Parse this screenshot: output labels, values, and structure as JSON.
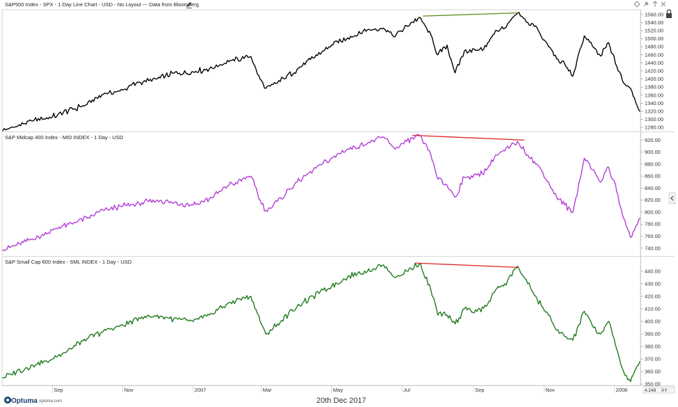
{
  "footer": {
    "date": "20th Dec 2017",
    "brand": "Optuma",
    "brand_url": "optuma.com",
    "corner_value": "4.248",
    "corner_xy": "XY"
  },
  "icons": [
    "pencil-icon",
    "diamond-icon",
    "pin-icon",
    "up-arrow-icon",
    "close-icon",
    "lock-icon",
    "collapse-arrow-icon"
  ],
  "x_axis": {
    "labels": [
      "Sep",
      "Nov",
      "2007",
      "Mar",
      "May",
      "Jul",
      "Sep",
      "Nov",
      "2008"
    ],
    "label_dates": [
      "2006-09-01",
      "2006-11-01",
      "2007-01-01",
      "2007-03-01",
      "2007-05-01",
      "2007-07-01",
      "2007-09-01",
      "2007-11-01",
      "2008-01-01"
    ],
    "start_date": "2006-07-20",
    "end_date": "2008-01-23"
  },
  "chart_data": [
    {
      "type": "line",
      "title": "S&P500 Index - SPX - 1 Day Line Chart - USD - No Layout --- Data from Bloomberg",
      "color": "#000000",
      "ylim": [
        1270,
        1570
      ],
      "yticks": [
        1280,
        1300,
        1320,
        1340,
        1360,
        1380,
        1400,
        1420,
        1440,
        1460,
        1480,
        1500,
        1520,
        1540,
        1560
      ],
      "ytick_labels": [
        "1280.00",
        "1300.00",
        "1320.00",
        "1340.00",
        "1360.00",
        "1380.00",
        "1400.00",
        "1420.00",
        "1440.00",
        "1460.00",
        "1480.00",
        "1500.00",
        "1520.00",
        "1540.00",
        "1560.00"
      ],
      "x": [
        "2006-07-20",
        "2006-08-01",
        "2006-08-15",
        "2006-09-01",
        "2006-09-15",
        "2006-10-01",
        "2006-10-15",
        "2006-11-01",
        "2006-11-15",
        "2006-12-01",
        "2006-12-15",
        "2007-01-01",
        "2007-01-15",
        "2007-02-01",
        "2007-02-20",
        "2007-02-28",
        "2007-03-05",
        "2007-03-15",
        "2007-04-01",
        "2007-04-15",
        "2007-05-01",
        "2007-05-15",
        "2007-06-01",
        "2007-06-15",
        "2007-06-25",
        "2007-07-05",
        "2007-07-16",
        "2007-07-26",
        "2007-08-01",
        "2007-08-09",
        "2007-08-16",
        "2007-08-24",
        "2007-09-04",
        "2007-09-12",
        "2007-09-20",
        "2007-09-28",
        "2007-10-09",
        "2007-10-18",
        "2007-10-26",
        "2007-11-05",
        "2007-11-12",
        "2007-11-19",
        "2007-11-26",
        "2007-12-06",
        "2007-12-14",
        "2007-12-20",
        "2007-12-27",
        "2008-01-03",
        "2008-01-09",
        "2008-01-15",
        "2008-01-23"
      ],
      "values": [
        1272,
        1282,
        1296,
        1306,
        1322,
        1337,
        1362,
        1373,
        1392,
        1401,
        1414,
        1418,
        1425,
        1443,
        1456,
        1400,
        1377,
        1390,
        1424,
        1452,
        1484,
        1502,
        1522,
        1526,
        1505,
        1532,
        1553,
        1510,
        1460,
        1484,
        1415,
        1470,
        1472,
        1480,
        1520,
        1526,
        1563,
        1540,
        1527,
        1480,
        1450,
        1437,
        1407,
        1507,
        1478,
        1457,
        1490,
        1432,
        1390,
        1377,
        1320
      ]
    },
    {
      "type": "line",
      "title": "S&P Midcap 400 Index - MID INDEX - 1 Day - USD",
      "color": "#b13ed6",
      "ylim": [
        727,
        932
      ],
      "yticks": [
        740,
        760,
        780,
        800,
        820,
        840,
        860,
        880,
        900,
        920
      ],
      "ytick_labels": [
        "740.00",
        "760.00",
        "780.00",
        "800.00",
        "820.00",
        "840.00",
        "860.00",
        "880.00",
        "900.00",
        "920.00"
      ],
      "x": [
        "2006-07-20",
        "2006-08-01",
        "2006-08-15",
        "2006-09-01",
        "2006-09-15",
        "2006-10-01",
        "2006-10-15",
        "2006-11-01",
        "2006-11-15",
        "2006-12-01",
        "2006-12-15",
        "2007-01-01",
        "2007-01-15",
        "2007-02-01",
        "2007-02-20",
        "2007-02-28",
        "2007-03-05",
        "2007-03-15",
        "2007-04-01",
        "2007-04-15",
        "2007-05-01",
        "2007-05-15",
        "2007-06-01",
        "2007-06-15",
        "2007-06-25",
        "2007-07-05",
        "2007-07-16",
        "2007-07-26",
        "2007-08-01",
        "2007-08-09",
        "2007-08-16",
        "2007-08-24",
        "2007-09-04",
        "2007-09-12",
        "2007-09-20",
        "2007-09-28",
        "2007-10-09",
        "2007-10-18",
        "2007-10-26",
        "2007-11-05",
        "2007-11-12",
        "2007-11-19",
        "2007-11-26",
        "2007-12-06",
        "2007-12-14",
        "2007-12-20",
        "2007-12-27",
        "2008-01-03",
        "2008-01-09",
        "2008-01-15",
        "2008-01-23"
      ],
      "values": [
        737,
        745,
        755,
        770,
        780,
        790,
        803,
        810,
        815,
        820,
        815,
        812,
        822,
        845,
        860,
        820,
        803,
        818,
        850,
        870,
        890,
        905,
        915,
        925,
        905,
        918,
        927,
        895,
        855,
        845,
        825,
        858,
        862,
        870,
        895,
        902,
        918,
        895,
        880,
        850,
        825,
        812,
        800,
        890,
        870,
        850,
        875,
        835,
        790,
        758,
        790
      ]
    },
    {
      "type": "line",
      "title": "S&P Small Cap 600 Index - SML INDEX - 1 Day - USD",
      "color": "#1e7a1e",
      "ylim": [
        349.5,
        451
      ],
      "yticks": [
        350,
        360,
        370,
        380,
        390,
        400,
        410,
        420,
        430,
        440
      ],
      "ytick_labels": [
        "350.00",
        "360.00",
        "370.00",
        "380.00",
        "390.00",
        "400.00",
        "410.00",
        "420.00",
        "430.00",
        "440.00"
      ],
      "x": [
        "2006-07-20",
        "2006-08-01",
        "2006-08-15",
        "2006-09-01",
        "2006-09-15",
        "2006-10-01",
        "2006-10-15",
        "2006-11-01",
        "2006-11-15",
        "2006-12-01",
        "2006-12-15",
        "2007-01-01",
        "2007-01-15",
        "2007-02-01",
        "2007-02-20",
        "2007-02-28",
        "2007-03-05",
        "2007-03-15",
        "2007-04-01",
        "2007-04-15",
        "2007-05-01",
        "2007-05-15",
        "2007-06-01",
        "2007-06-15",
        "2007-06-25",
        "2007-07-05",
        "2007-07-16",
        "2007-07-26",
        "2007-08-01",
        "2007-08-09",
        "2007-08-16",
        "2007-08-24",
        "2007-09-04",
        "2007-09-12",
        "2007-09-20",
        "2007-09-28",
        "2007-10-09",
        "2007-10-18",
        "2007-10-26",
        "2007-11-05",
        "2007-11-12",
        "2007-11-19",
        "2007-11-26",
        "2007-12-06",
        "2007-12-14",
        "2007-12-20",
        "2007-12-27",
        "2008-01-03",
        "2008-01-09",
        "2008-01-15",
        "2008-01-23"
      ],
      "values": [
        355,
        360,
        365,
        370,
        378,
        386,
        392,
        397,
        403,
        405,
        402,
        400,
        405,
        415,
        420,
        400,
        390,
        398,
        412,
        420,
        428,
        436,
        440,
        445,
        435,
        440,
        446,
        425,
        405,
        405,
        398,
        410,
        408,
        412,
        425,
        430,
        444,
        430,
        418,
        405,
        393,
        388,
        385,
        408,
        395,
        390,
        400,
        378,
        360,
        352,
        368
      ]
    }
  ],
  "divergence_lines": [
    {
      "panel": 0,
      "color": "#5a8f1e",
      "x": [
        "2007-07-19",
        "2007-10-10"
      ],
      "y": [
        1556,
        1564
      ]
    },
    {
      "panel": 1,
      "color": "#dd2222",
      "x": [
        "2007-07-10",
        "2007-10-15"
      ],
      "y": [
        928,
        920
      ]
    },
    {
      "panel": 2,
      "color": "#dd2222",
      "x": [
        "2007-07-13",
        "2007-10-10"
      ],
      "y": [
        446.5,
        443
      ]
    }
  ]
}
